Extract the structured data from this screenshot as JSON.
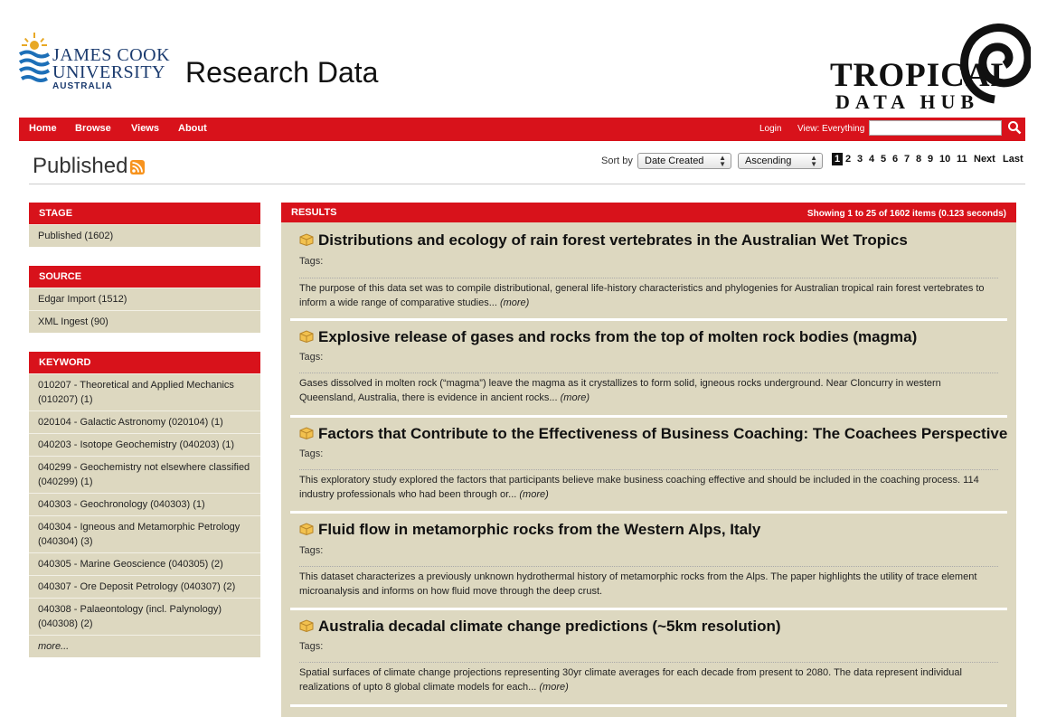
{
  "header": {
    "jcu_line1": "JAMES COOK",
    "jcu_line2": "UNIVERSITY",
    "jcu_line3": "AUSTRALIA",
    "site_title": "Research Data",
    "tdh_line1": "TROPICAL",
    "tdh_line2": "DATA HUB"
  },
  "nav": {
    "items": [
      "Home",
      "Browse",
      "Views",
      "About"
    ],
    "login": "Login",
    "view": "View: Everything",
    "search_placeholder": ""
  },
  "page": {
    "title": "Published",
    "sort_label": "Sort by",
    "sort_field": "Date Created",
    "sort_order": "Ascending",
    "pages": [
      "1",
      "2",
      "3",
      "4",
      "5",
      "6",
      "7",
      "8",
      "9",
      "10",
      "11"
    ],
    "next": "Next",
    "last": "Last"
  },
  "sidebar": {
    "stage": {
      "heading": "STAGE",
      "items": [
        "Published (1602)"
      ]
    },
    "source": {
      "heading": "SOURCE",
      "items": [
        "Edgar Import (1512)",
        "XML Ingest (90)"
      ]
    },
    "keyword": {
      "heading": "KEYWORD",
      "items": [
        "010207 - Theoretical and Applied Mechanics (010207) (1)",
        "020104 - Galactic Astronomy (020104) (1)",
        "040203 - Isotope Geochemistry (040203) (1)",
        "040299 - Geochemistry not elsewhere classified (040299) (1)",
        "040303 - Geochronology (040303) (1)",
        "040304 - Igneous and Metamorphic Petrology (040304) (3)",
        "040305 - Marine Geoscience (040305) (2)",
        "040307 - Ore Deposit Petrology (040307) (2)",
        "040308 - Palaeontology (incl. Palynology) (040308) (2)"
      ],
      "more": "more..."
    }
  },
  "results": {
    "heading": "RESULTS",
    "info": "Showing 1 to 25 of 1602 items (0.123 seconds)",
    "tags_label": "Tags:",
    "more_label": "(more)",
    "items": [
      {
        "title": "Distributions and ecology of rain forest vertebrates in the Australian Wet Tropics",
        "desc": "The purpose of this data set was to compile distributional, general life-history characteristics and phylogenies for Australian tropical rain forest vertebrates to inform a wide range of comparative studies..."
      },
      {
        "title": "Explosive release of gases and rocks from the top of molten rock bodies (magma)",
        "desc": "Gases dissolved in molten rock (“magma”) leave the magma as it crystallizes to form solid, igneous rocks underground. Near Cloncurry in western Queensland, Australia, there is evidence in ancient rocks..."
      },
      {
        "title": "Factors that Contribute to the Effectiveness of Business Coaching: The Coachees Perspective",
        "desc": "This exploratory study explored the factors that participants believe make business coaching effective and should be included in the coaching process. 114 industry professionals who had been through or..."
      },
      {
        "title": "Fluid flow in metamorphic rocks from the Western Alps, Italy",
        "desc": "This dataset characterizes a previously unknown hydrothermal history of metamorphic rocks from the Alps. The paper highlights the utility of trace element microanalysis and informs on how fluid move through the deep crust."
      },
      {
        "title": "Australia decadal climate change predictions (~5km resolution)",
        "desc": "Spatial surfaces of climate change projections representing 30yr climate averages for each decade from present to 2080. The data represent individual realizations of upto 8 global climate models for each..."
      }
    ]
  }
}
